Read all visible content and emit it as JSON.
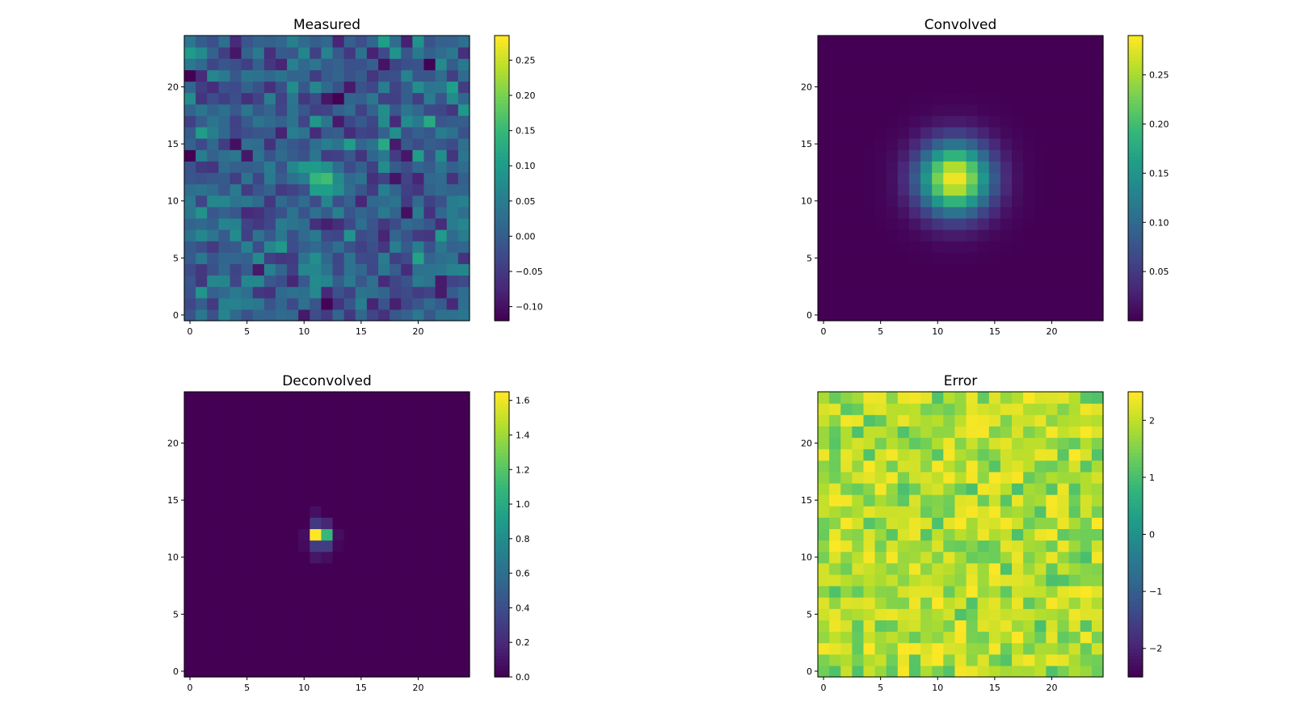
{
  "figure": {
    "colormap": "viridis",
    "colormap_stops": [
      "#440154",
      "#482878",
      "#3e4989",
      "#31688e",
      "#26828e",
      "#1f9e89",
      "#35b779",
      "#6ece58",
      "#b5de2b",
      "#fde725"
    ]
  },
  "chart_data": [
    {
      "type": "heatmap",
      "title": "Measured",
      "grid_size": 25,
      "xticks": [
        0,
        5,
        10,
        15,
        20
      ],
      "yticks": [
        0,
        5,
        10,
        15,
        20
      ],
      "vmin": -0.12,
      "vmax": 0.285,
      "colorbar_ticks": [
        -0.1,
        -0.05,
        0.0,
        0.05,
        0.1,
        0.15,
        0.2,
        0.25
      ],
      "colorbar_labels": [
        "−0.10",
        "−0.05",
        "0.00",
        "0.05",
        "0.10",
        "0.15",
        "0.20",
        "0.25"
      ],
      "pattern": "noise_peak",
      "peak_center": [
        11.5,
        12
      ],
      "peak_value": 0.285,
      "noise_level": 0.045,
      "background": 0.0
    },
    {
      "type": "heatmap",
      "title": "Convolved",
      "grid_size": 25,
      "xticks": [
        0,
        5,
        10,
        15,
        20
      ],
      "yticks": [
        0,
        5,
        10,
        15,
        20
      ],
      "vmin": 0.0,
      "vmax": 0.29,
      "colorbar_ticks": [
        0.05,
        0.1,
        0.15,
        0.2,
        0.25
      ],
      "colorbar_labels": [
        "0.05",
        "0.10",
        "0.15",
        "0.20",
        "0.25"
      ],
      "pattern": "gaussian",
      "peak_center": [
        11.5,
        12
      ],
      "peak_value": 0.29,
      "sigma": 2.2
    },
    {
      "type": "heatmap",
      "title": "Deconvolved",
      "grid_size": 25,
      "xticks": [
        0,
        5,
        10,
        15,
        20
      ],
      "yticks": [
        0,
        5,
        10,
        15,
        20
      ],
      "vmin": 0.0,
      "vmax": 1.65,
      "colorbar_ticks": [
        0.0,
        0.2,
        0.4,
        0.6,
        0.8,
        1.0,
        1.2,
        1.4,
        1.6
      ],
      "colorbar_labels": [
        "0.0",
        "0.2",
        "0.4",
        "0.6",
        "0.8",
        "1.0",
        "1.2",
        "1.4",
        "1.6"
      ],
      "pattern": "sharp_peak",
      "peak_cells": [
        {
          "x": 11,
          "y": 12,
          "v": 1.65
        },
        {
          "x": 12,
          "y": 12,
          "v": 1.1
        },
        {
          "x": 11,
          "y": 13,
          "v": 0.28
        },
        {
          "x": 12,
          "y": 13,
          "v": 0.18
        },
        {
          "x": 11,
          "y": 11,
          "v": 0.3
        },
        {
          "x": 12,
          "y": 11,
          "v": 0.3
        },
        {
          "x": 11,
          "y": 10,
          "v": 0.1
        },
        {
          "x": 12,
          "y": 10,
          "v": 0.06
        },
        {
          "x": 11,
          "y": 14,
          "v": 0.07
        },
        {
          "x": 10,
          "y": 12,
          "v": 0.06
        },
        {
          "x": 13,
          "y": 12,
          "v": 0.06
        },
        {
          "x": 10,
          "y": 11,
          "v": 0.04
        },
        {
          "x": 13,
          "y": 11,
          "v": 0.03
        }
      ]
    },
    {
      "type": "heatmap",
      "title": "Error",
      "grid_size": 25,
      "xticks": [
        0,
        5,
        10,
        15,
        20
      ],
      "yticks": [
        0,
        5,
        10,
        15,
        20
      ],
      "vmin": -2.5,
      "vmax": 2.5,
      "colorbar_ticks": [
        -2,
        -1,
        0,
        1,
        2
      ],
      "colorbar_labels": [
        "−2",
        "−1",
        "0",
        "1",
        "2"
      ],
      "pattern": "noise_uniform",
      "value_range": [
        1.0,
        2.5
      ]
    }
  ]
}
